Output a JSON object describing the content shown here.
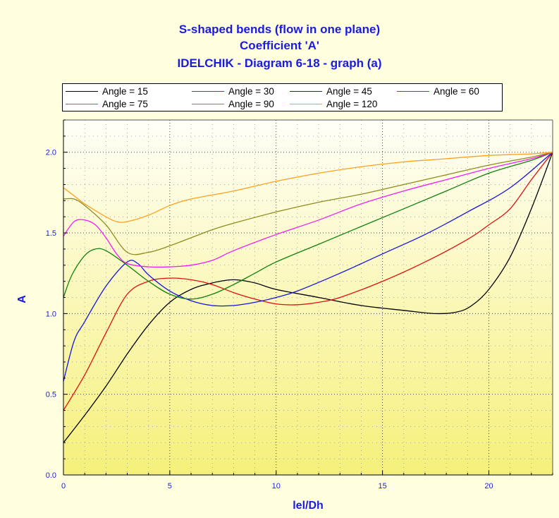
{
  "title_lines": [
    "S-shaped bends (flow in one plane)",
    "Coefficient 'A'",
    "IDELCHIK - Diagram 6-18 - graph (a)"
  ],
  "colors": {
    "background": "#ffffe0",
    "plot_gradient_top": "#fffff8",
    "plot_gradient_bottom": "#f6f07a",
    "title": "#1a1ae0",
    "axis_labels": "#1a1ae0"
  },
  "chart_data": {
    "type": "line",
    "title": "S-shaped bends (flow in one plane) / Coefficient 'A' / IDELCHIK - Diagram 6-18 - graph (a)",
    "xlabel": "lel/Dh",
    "ylabel": "A",
    "xlim": [
      0,
      23
    ],
    "ylim": [
      0,
      2.2
    ],
    "x_ticks": [
      0,
      5,
      10,
      15,
      20
    ],
    "x_tick_labels": [
      "0",
      "5",
      "10",
      "15",
      "20"
    ],
    "y_ticks": [
      0,
      0.5,
      1.0,
      1.5,
      2.0
    ],
    "y_tick_labels": [
      "0.0",
      "0.5",
      "1.0",
      "1.5",
      "2.0"
    ],
    "grid": true,
    "legend_position": "top",
    "series": [
      {
        "name": "Angle = 15",
        "color": "#000000",
        "points": [
          [
            0,
            0.2
          ],
          [
            1,
            0.37
          ],
          [
            2,
            0.55
          ],
          [
            3,
            0.75
          ],
          [
            4,
            0.93
          ],
          [
            5,
            1.07
          ],
          [
            6,
            1.15
          ],
          [
            7,
            1.19
          ],
          [
            8,
            1.21
          ],
          [
            9,
            1.19
          ],
          [
            10,
            1.15
          ],
          [
            12,
            1.1
          ],
          [
            14,
            1.05
          ],
          [
            16,
            1.02
          ],
          [
            17.5,
            1.0
          ],
          [
            18.5,
            1.01
          ],
          [
            19.2,
            1.05
          ],
          [
            20,
            1.15
          ],
          [
            21,
            1.35
          ],
          [
            22,
            1.65
          ],
          [
            23,
            2.0
          ]
        ]
      },
      {
        "name": "Angle = 30",
        "color": "#e01010",
        "points": [
          [
            0,
            0.4
          ],
          [
            1,
            0.62
          ],
          [
            2,
            0.88
          ],
          [
            3,
            1.12
          ],
          [
            4,
            1.2
          ],
          [
            5,
            1.22
          ],
          [
            6,
            1.21
          ],
          [
            7,
            1.18
          ],
          [
            8,
            1.13
          ],
          [
            9,
            1.09
          ],
          [
            10,
            1.06
          ],
          [
            11,
            1.055
          ],
          [
            12,
            1.07
          ],
          [
            13,
            1.1
          ],
          [
            15,
            1.2
          ],
          [
            17,
            1.32
          ],
          [
            19,
            1.46
          ],
          [
            20,
            1.55
          ],
          [
            21,
            1.65
          ],
          [
            22,
            1.83
          ],
          [
            23,
            2.0
          ]
        ]
      },
      {
        "name": "Angle = 45",
        "color": "#1515e0",
        "points": [
          [
            0,
            0.58
          ],
          [
            0.5,
            0.83
          ],
          [
            1,
            0.95
          ],
          [
            2,
            1.17
          ],
          [
            3,
            1.32
          ],
          [
            3.5,
            1.31
          ],
          [
            4,
            1.24
          ],
          [
            5,
            1.14
          ],
          [
            6,
            1.08
          ],
          [
            7,
            1.05
          ],
          [
            8,
            1.05
          ],
          [
            9,
            1.07
          ],
          [
            10,
            1.1
          ],
          [
            11,
            1.14
          ],
          [
            13,
            1.25
          ],
          [
            15,
            1.37
          ],
          [
            17,
            1.49
          ],
          [
            19,
            1.63
          ],
          [
            21,
            1.78
          ],
          [
            23,
            2.0
          ]
        ]
      },
      {
        "name": "Angle = 60",
        "color": "#108010",
        "points": [
          [
            0,
            1.1
          ],
          [
            0.4,
            1.24
          ],
          [
            1,
            1.36
          ],
          [
            1.5,
            1.4
          ],
          [
            2,
            1.39
          ],
          [
            3,
            1.3
          ],
          [
            4,
            1.2
          ],
          [
            5,
            1.12
          ],
          [
            6,
            1.09
          ],
          [
            7,
            1.12
          ],
          [
            8,
            1.18
          ],
          [
            9,
            1.25
          ],
          [
            10,
            1.32
          ],
          [
            12,
            1.43
          ],
          [
            14,
            1.54
          ],
          [
            16,
            1.65
          ],
          [
            18,
            1.76
          ],
          [
            20,
            1.87
          ],
          [
            22,
            1.95
          ],
          [
            23,
            2.0
          ]
        ]
      },
      {
        "name": "Angle = 75",
        "color": "#f020f0",
        "points": [
          [
            0,
            1.48
          ],
          [
            0.5,
            1.57
          ],
          [
            1,
            1.58
          ],
          [
            1.5,
            1.55
          ],
          [
            2,
            1.47
          ],
          [
            2.5,
            1.37
          ],
          [
            3,
            1.31
          ],
          [
            4,
            1.29
          ],
          [
            5,
            1.29
          ],
          [
            6,
            1.3
          ],
          [
            7,
            1.33
          ],
          [
            8,
            1.39
          ],
          [
            10,
            1.49
          ],
          [
            12,
            1.58
          ],
          [
            14,
            1.68
          ],
          [
            16,
            1.76
          ],
          [
            18,
            1.83
          ],
          [
            20,
            1.9
          ],
          [
            22,
            1.96
          ],
          [
            23,
            2.0
          ]
        ]
      },
      {
        "name": "Angle = 90",
        "color": "#8c8c1e",
        "points": [
          [
            0,
            1.71
          ],
          [
            0.5,
            1.71
          ],
          [
            1,
            1.67
          ],
          [
            2,
            1.55
          ],
          [
            3,
            1.38
          ],
          [
            4,
            1.38
          ],
          [
            5,
            1.42
          ],
          [
            6,
            1.47
          ],
          [
            7,
            1.52
          ],
          [
            8,
            1.56
          ],
          [
            10,
            1.63
          ],
          [
            12,
            1.69
          ],
          [
            14,
            1.74
          ],
          [
            16,
            1.8
          ],
          [
            18,
            1.86
          ],
          [
            20,
            1.92
          ],
          [
            22,
            1.97
          ],
          [
            23,
            2.0
          ]
        ]
      },
      {
        "name": "Angle = 120",
        "color": "#ffa020",
        "points": [
          [
            0,
            1.78
          ],
          [
            0.5,
            1.73
          ],
          [
            1,
            1.68
          ],
          [
            2,
            1.6
          ],
          [
            2.5,
            1.57
          ],
          [
            3,
            1.57
          ],
          [
            4,
            1.61
          ],
          [
            5,
            1.67
          ],
          [
            6,
            1.71
          ],
          [
            8,
            1.76
          ],
          [
            10,
            1.82
          ],
          [
            12,
            1.87
          ],
          [
            14,
            1.91
          ],
          [
            16,
            1.94
          ],
          [
            18,
            1.96
          ],
          [
            20,
            1.98
          ],
          [
            22,
            1.99
          ],
          [
            23,
            2.0
          ]
        ]
      }
    ]
  }
}
